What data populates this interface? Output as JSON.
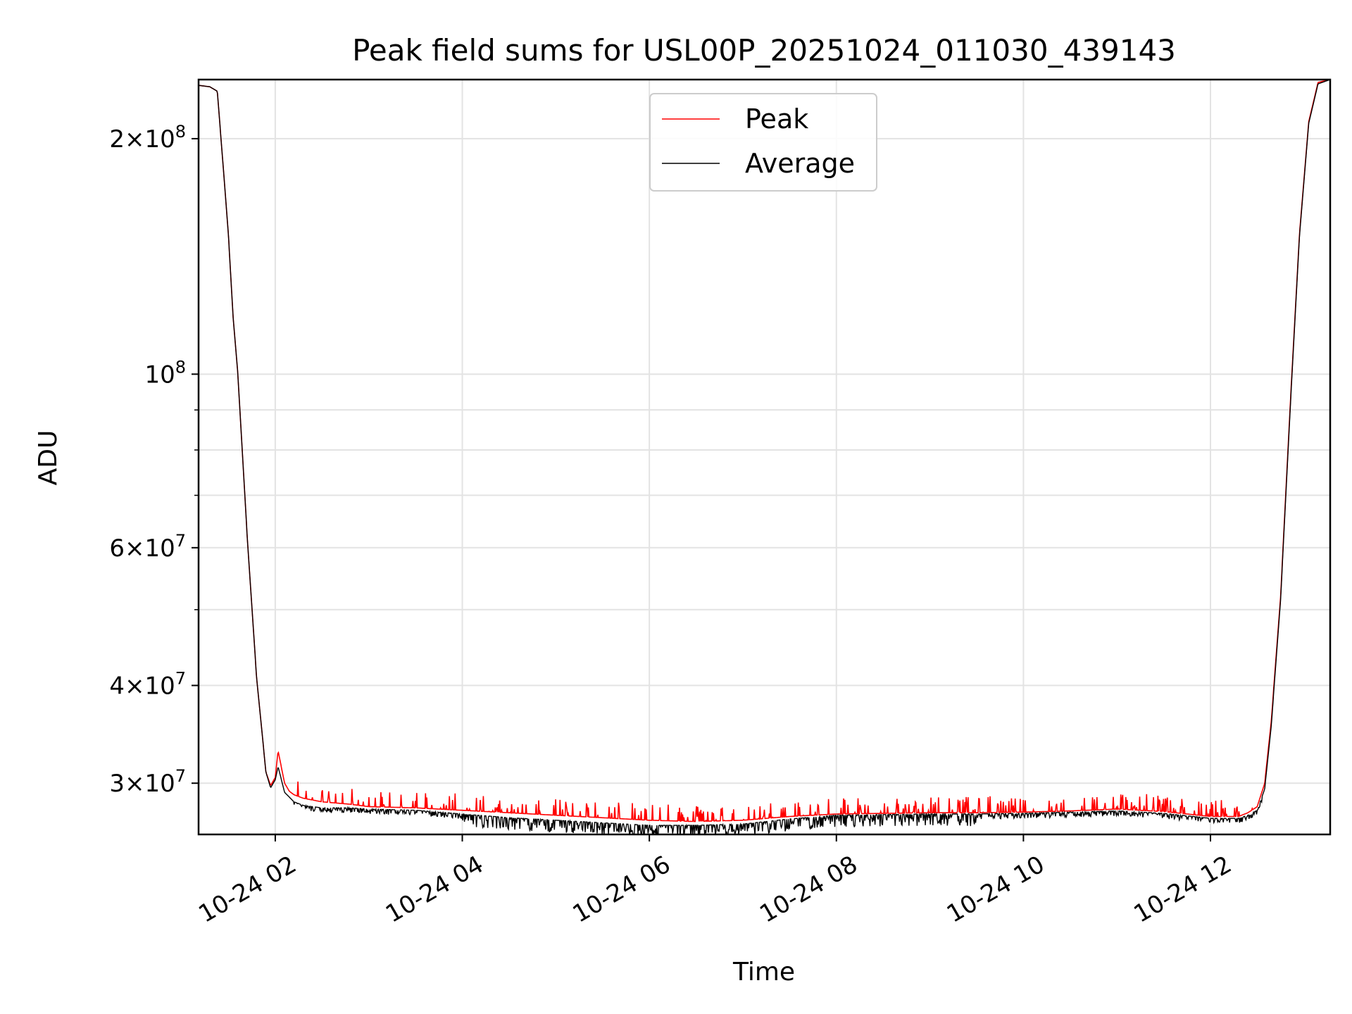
{
  "chart_data": {
    "type": "line",
    "title": "Peak field sums for USL00P_20251024_011030_439143",
    "xlabel": "Time",
    "ylabel": "ADU",
    "y_scale": "log",
    "xlim_hours": [
      1.18,
      13.28
    ],
    "ylim": [
      25800000,
      238000000
    ],
    "x_tick_labels": [
      "10-24 02",
      "10-24 04",
      "10-24 06",
      "10-24 08",
      "10-24 10",
      "10-24 12"
    ],
    "x_ticks_hours": [
      2,
      4,
      6,
      8,
      10,
      12
    ],
    "y_tick_labels": [
      {
        "value": 30000000,
        "mantissa": "3",
        "exp": "7"
      },
      {
        "value": 40000000,
        "mantissa": "4",
        "exp": "7"
      },
      {
        "value": 60000000,
        "mantissa": "6",
        "exp": "7"
      },
      {
        "value": 100000000,
        "mantissa": "",
        "exp": "8"
      },
      {
        "value": 200000000,
        "mantissa": "2",
        "exp": "8"
      }
    ],
    "y_minor_values": [
      50000000,
      70000000,
      80000000,
      90000000
    ],
    "grid": true,
    "legend_position": "top-center",
    "series": [
      {
        "name": "Peak",
        "color": "#ff0000",
        "x_hours": [
          1.18,
          1.3,
          1.38,
          1.45,
          1.5,
          1.55,
          1.6,
          1.7,
          1.8,
          1.9,
          1.95,
          2.0,
          2.03,
          2.1,
          2.15,
          2.2,
          2.3,
          2.5,
          2.8,
          3.0,
          3.5,
          4.0,
          4.5,
          5.0,
          5.5,
          6.0,
          6.5,
          7.0,
          7.5,
          8.0,
          8.5,
          9.0,
          9.5,
          10.0,
          10.5,
          11.0,
          11.5,
          12.0,
          12.3,
          12.4,
          12.5,
          12.58,
          12.65,
          12.75,
          12.85,
          12.95,
          13.05,
          13.15,
          13.28
        ],
        "values": [
          234000000,
          233000000,
          230000000,
          180000000,
          150000000,
          118000000,
          100000000,
          62000000,
          41000000,
          31000000,
          29800000,
          30500000,
          33000000,
          30000000,
          29300000,
          29000000,
          28700000,
          28400000,
          28200000,
          28000000,
          27900000,
          27700000,
          27500000,
          27300000,
          27100000,
          26900000,
          26800000,
          26900000,
          27200000,
          27400000,
          27450000,
          27500000,
          27500000,
          27550000,
          27650000,
          27800000,
          27600000,
          27200000,
          27200000,
          27500000,
          28000000,
          30000000,
          36000000,
          52000000,
          90000000,
          150000000,
          210000000,
          236000000,
          238000000
        ]
      },
      {
        "name": "Average",
        "color": "#000000",
        "x_hours": [
          1.18,
          1.3,
          1.38,
          1.45,
          1.5,
          1.55,
          1.6,
          1.7,
          1.8,
          1.9,
          1.95,
          2.0,
          2.03,
          2.1,
          2.15,
          2.2,
          2.3,
          2.5,
          2.8,
          3.0,
          3.5,
          4.0,
          4.5,
          5.0,
          5.5,
          6.0,
          6.5,
          7.0,
          7.5,
          8.0,
          8.5,
          9.0,
          9.5,
          10.0,
          10.5,
          11.0,
          11.5,
          12.0,
          12.3,
          12.4,
          12.5,
          12.58,
          12.65,
          12.75,
          12.85,
          12.95,
          13.05,
          13.15,
          13.28
        ],
        "values": [
          234000000,
          233000000,
          230000000,
          180000000,
          150000000,
          118000000,
          100000000,
          62000000,
          41000000,
          31000000,
          29600000,
          30300000,
          31500000,
          29200000,
          28800000,
          28400000,
          28100000,
          27900000,
          27900000,
          27800000,
          27700000,
          27400000,
          27100000,
          26900000,
          26700000,
          26500000,
          26500000,
          26600000,
          27000000,
          27300000,
          27350000,
          27400000,
          27400000,
          27450000,
          27550000,
          27650000,
          27450000,
          27050000,
          27050000,
          27300000,
          27700000,
          29500000,
          35500000,
          51500000,
          89000000,
          149000000,
          209000000,
          235000000,
          238000000
        ]
      }
    ]
  }
}
